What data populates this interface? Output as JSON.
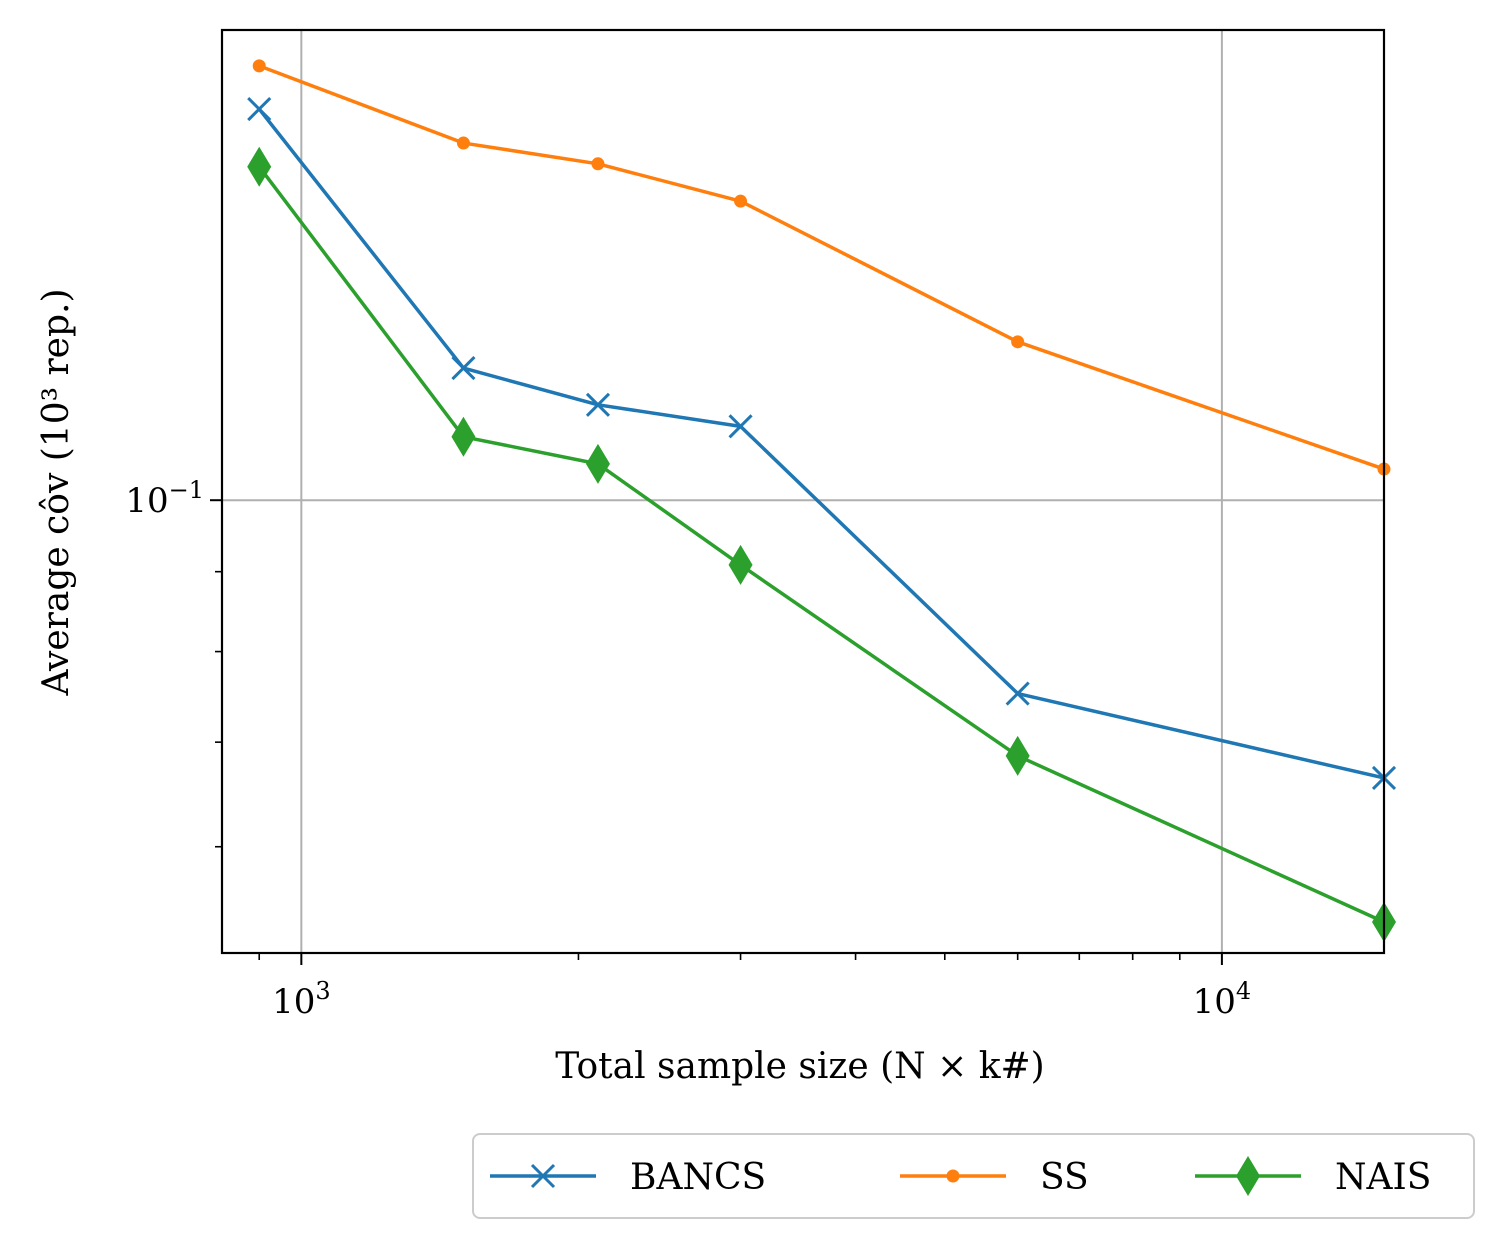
{
  "chart_data": {
    "type": "line",
    "xscale": "log",
    "yscale": "log",
    "xlim": [
      820,
      15000
    ],
    "ylim": [
      0.0513,
      0.2
    ],
    "grid": true,
    "legend_position": "bottom-right",
    "xlabel": "Total sample size (N × k#)",
    "ylabel": "Average côv (10³ rep.)",
    "x_major_ticks": [
      {
        "value": 1000,
        "base": "10",
        "exp": "3"
      },
      {
        "value": 10000,
        "base": "10",
        "exp": "4"
      }
    ],
    "y_major_ticks": [
      {
        "value": 0.1,
        "base": "10",
        "exp": "−1"
      }
    ],
    "series": [
      {
        "name": "BANCS",
        "color": "#1f77b4",
        "marker": "x",
        "x": [
          900,
          1500,
          2100,
          3000,
          6000,
          15000
        ],
        "y": [
          0.178,
          0.1215,
          0.1151,
          0.1115,
          0.0752,
          0.0664
        ]
      },
      {
        "name": "SS",
        "color": "#ff7f0e",
        "marker": "dot",
        "x": [
          900,
          1500,
          2100,
          3000,
          6000,
          15000
        ],
        "y": [
          0.1897,
          0.1693,
          0.1642,
          0.1554,
          0.1263,
          0.1047
        ]
      },
      {
        "name": "NAIS",
        "color": "#2ca02c",
        "marker": "diamond",
        "x": [
          900,
          1500,
          2100,
          3000,
          6000,
          15000
        ],
        "y": [
          0.1635,
          0.1098,
          0.1055,
          0.0909,
          0.0686,
          0.0537
        ]
      }
    ]
  }
}
